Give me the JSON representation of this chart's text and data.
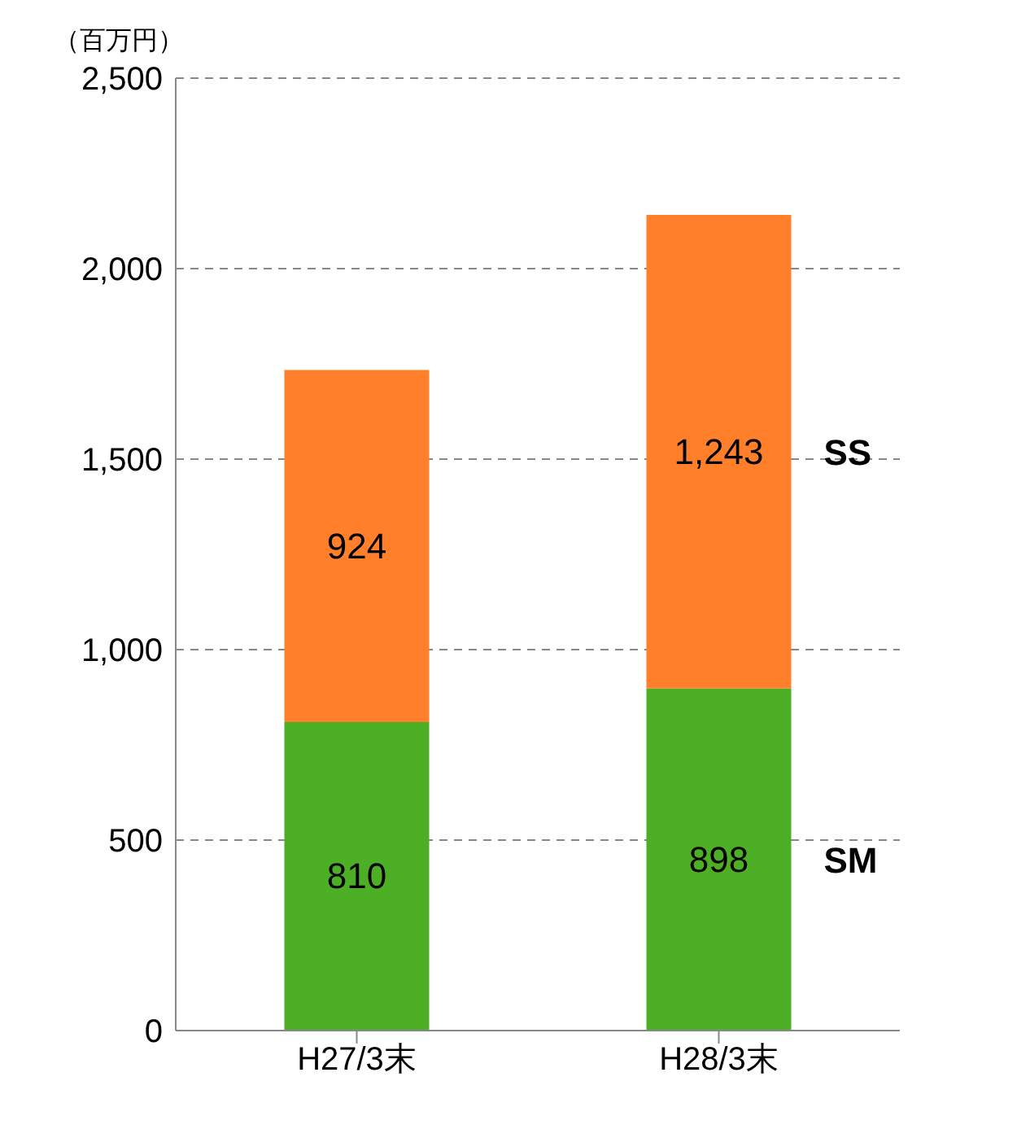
{
  "chart_data": {
    "type": "bar",
    "stacked": true,
    "ylabel": "（百万円）",
    "categories": [
      "H27/3末",
      "H28/3末"
    ],
    "series": [
      {
        "name": "SM",
        "color": "#4caf26",
        "values": [
          810,
          898
        ],
        "value_labels": [
          "810",
          "898"
        ]
      },
      {
        "name": "SS",
        "color": "#ff7f2a",
        "values": [
          924,
          1243
        ],
        "value_labels": [
          "924",
          "1,243"
        ]
      }
    ],
    "ylim": [
      0,
      2500
    ],
    "yticks": [
      {
        "value": 0,
        "label": "0"
      },
      {
        "value": 500,
        "label": "500"
      },
      {
        "value": 1000,
        "label": "1,000"
      },
      {
        "value": 1500,
        "label": "1,500"
      },
      {
        "value": 2000,
        "label": "2,000"
      },
      {
        "value": 2500,
        "label": "2,500"
      }
    ],
    "grid": "y",
    "legend": false
  }
}
